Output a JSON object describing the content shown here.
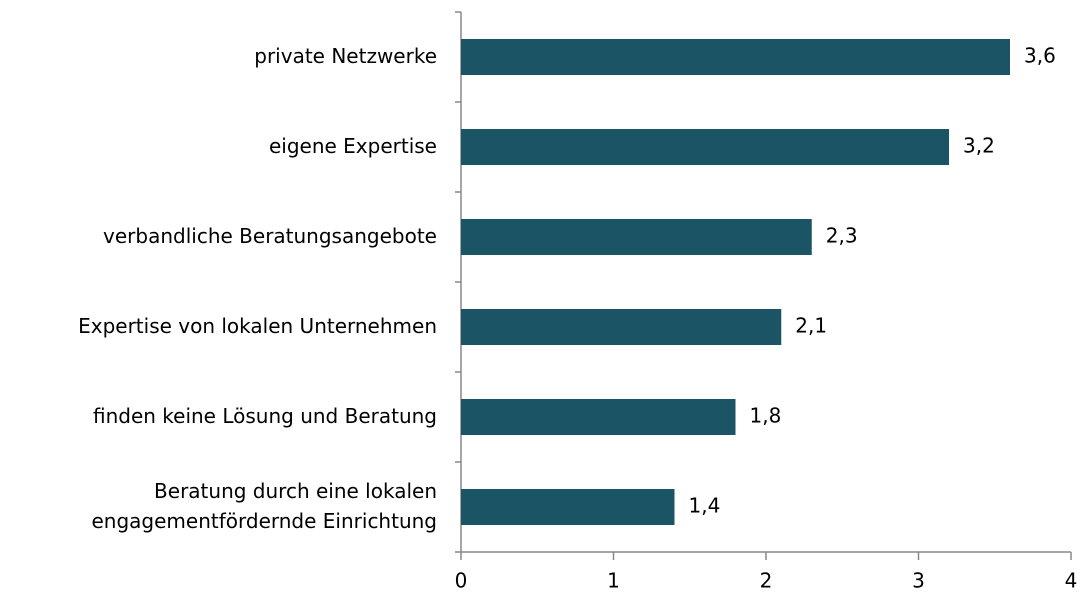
{
  "chart_data": {
    "type": "barh",
    "categories": [
      "private Netzwerke",
      "eigene Expertise",
      "verbandliche Beratungsangebote",
      "Expertise von lokalen Unternehmen",
      "finden keine Lösung und Beratung",
      "Beratung durch eine lokalen\nengagementfördernde Einrichtung"
    ],
    "values": [
      3.6,
      3.2,
      2.3,
      2.1,
      1.8,
      1.4
    ],
    "value_labels": [
      "3,6",
      "3,2",
      "2,3",
      "2,1",
      "1,8",
      "1,4"
    ],
    "color": "#1b5464",
    "xlim": [
      0,
      4
    ],
    "xticks": [
      0,
      1,
      2,
      3,
      4
    ],
    "grid": false
  }
}
